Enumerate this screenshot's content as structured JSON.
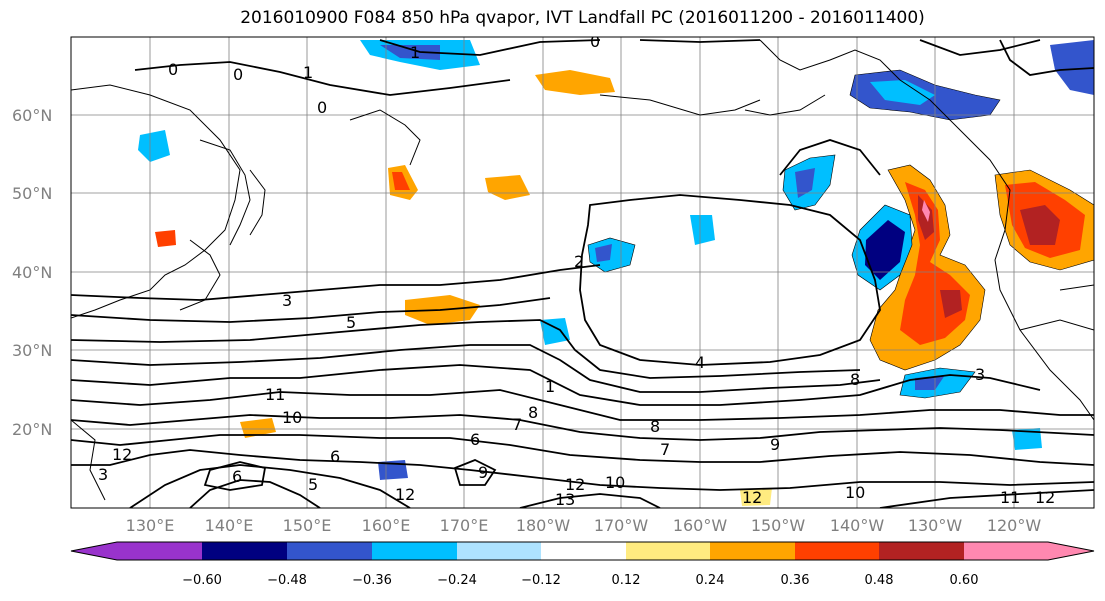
{
  "title": "2016010900 F084 850 hPa qvapor, IVT Landfall PC (2016011200 - 2016011400)",
  "lat_labels": [
    "60°N",
    "50°N",
    "40°N",
    "30°N",
    "20°N"
  ],
  "lon_labels": [
    "130°E",
    "140°E",
    "150°E",
    "160°E",
    "170°E",
    "180°W",
    "170°W",
    "160°W",
    "150°W",
    "140°W",
    "130°W",
    "120°W"
  ],
  "colorbar": {
    "colors": [
      "#9933cc",
      "#000080",
      "#3355cc",
      "#00bfff",
      "#aee3ff",
      "#ffffff",
      "#ffeb80",
      "#ffa500",
      "#ff4000",
      "#b22222",
      "#ff88b0"
    ],
    "tick_labels": [
      "−0.60",
      "−0.48",
      "−0.36",
      "−0.24",
      "−0.12",
      "0.12",
      "0.24",
      "0.36",
      "0.48",
      "0.60"
    ]
  },
  "contour_labels": [
    "0",
    "0",
    "0",
    "1",
    "1",
    "0",
    "2",
    "3",
    "5",
    "4",
    "3",
    "8",
    "1",
    "8",
    "7",
    "6",
    "7",
    "8",
    "9",
    "6",
    "11",
    "10",
    "12",
    "5",
    "6",
    "9",
    "13",
    "12",
    "10",
    "12",
    "10",
    "12",
    "11",
    "12",
    "3"
  ]
}
